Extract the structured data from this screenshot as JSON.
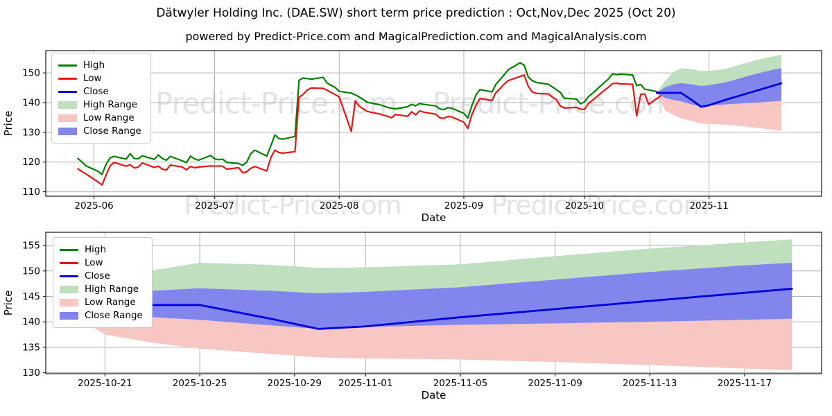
{
  "page": {
    "title": "Dätwyler Holding Inc. (DAE.SW) short term price prediction : Oct,Nov,Dec 2025 (Oct 20)",
    "subtitle": "powered by Predict-Price.com and MagicalPrediction.com and MagicalAnalysis.com",
    "watermark": "Predict-Price.com"
  },
  "colors": {
    "high_line": "#008000",
    "low_line": "#e81414",
    "close_line": "#0000dd",
    "high_range": "#bfdfbf",
    "low_range": "#f8c7c4",
    "close_range": "#8285ec",
    "grid": "#b3b3b3",
    "frame": "#262626",
    "text": "#000000",
    "watermark": "#e3e3e3"
  },
  "legend": {
    "items": [
      "High",
      "Low",
      "Close",
      "High Range",
      "Low Range",
      "Close Range"
    ]
  },
  "series_data": {
    "history": {
      "dates": [
        "2025-05-28",
        "2025-05-29",
        "2025-05-30",
        "2025-06-02",
        "2025-06-03",
        "2025-06-04",
        "2025-06-05",
        "2025-06-06",
        "2025-06-09",
        "2025-06-10",
        "2025-06-11",
        "2025-06-12",
        "2025-06-13",
        "2025-06-16",
        "2025-06-17",
        "2025-06-18",
        "2025-06-19",
        "2025-06-20",
        "2025-06-23",
        "2025-06-24",
        "2025-06-25",
        "2025-06-26",
        "2025-06-27",
        "2025-06-30",
        "2025-07-01",
        "2025-07-02",
        "2025-07-03",
        "2025-07-04",
        "2025-07-07",
        "2025-07-08",
        "2025-07-09",
        "2025-07-10",
        "2025-07-11",
        "2025-07-14",
        "2025-07-15",
        "2025-07-16",
        "2025-07-17",
        "2025-07-18",
        "2025-07-21",
        "2025-07-22",
        "2025-07-23",
        "2025-07-24",
        "2025-07-25",
        "2025-07-28",
        "2025-07-29",
        "2025-07-30",
        "2025-07-31",
        "2025-08-01",
        "2025-08-04",
        "2025-08-05",
        "2025-08-06",
        "2025-08-07",
        "2025-08-08",
        "2025-08-11",
        "2025-08-12",
        "2025-08-13",
        "2025-08-14",
        "2025-08-15",
        "2025-08-18",
        "2025-08-19",
        "2025-08-20",
        "2025-08-21",
        "2025-08-22",
        "2025-08-25",
        "2025-08-26",
        "2025-08-27",
        "2025-08-28",
        "2025-08-29",
        "2025-09-01",
        "2025-09-02",
        "2025-09-03",
        "2025-09-04",
        "2025-09-05",
        "2025-09-08",
        "2025-09-09",
        "2025-09-10",
        "2025-09-11",
        "2025-09-12",
        "2025-09-15",
        "2025-09-16",
        "2025-09-17",
        "2025-09-18",
        "2025-09-19",
        "2025-09-22",
        "2025-09-23",
        "2025-09-24",
        "2025-09-25",
        "2025-09-26",
        "2025-09-29",
        "2025-09-30",
        "2025-10-01",
        "2025-10-02",
        "2025-10-03",
        "2025-10-06",
        "2025-10-07",
        "2025-10-08",
        "2025-10-09",
        "2025-10-10",
        "2025-10-13",
        "2025-10-14",
        "2025-10-15",
        "2025-10-16",
        "2025-10-17",
        "2025-10-20"
      ],
      "high": [
        121.2,
        120.0,
        118.7,
        116.9,
        115.8,
        119.2,
        121.4,
        121.9,
        121.0,
        122.8,
        121.2,
        121.1,
        122.1,
        120.9,
        122.4,
        121.2,
        120.6,
        121.9,
        120.4,
        119.8,
        122.0,
        121.1,
        120.6,
        122.2,
        121.1,
        120.8,
        121.0,
        119.9,
        119.5,
        118.9,
        120.0,
        122.8,
        124.0,
        122.0,
        125.5,
        129.1,
        127.9,
        127.7,
        128.6,
        147.5,
        148.3,
        148.1,
        147.9,
        148.5,
        146.6,
        145.8,
        145.1,
        143.8,
        143.2,
        142.6,
        141.9,
        141.0,
        140.1,
        139.3,
        138.9,
        138.4,
        138.1,
        137.9,
        138.6,
        139.4,
        138.9,
        139.7,
        139.4,
        138.9,
        137.9,
        137.6,
        138.3,
        138.1,
        136.4,
        134.8,
        139.0,
        142.5,
        144.4,
        143.6,
        146.2,
        147.7,
        149.3,
        151.0,
        153.4,
        152.6,
        148.7,
        147.4,
        146.8,
        146.2,
        145.3,
        144.4,
        143.4,
        141.5,
        141.2,
        139.6,
        140.2,
        142.0,
        143.1,
        146.8,
        148.0,
        149.7,
        149.4,
        149.6,
        149.3,
        145.7,
        146.1,
        144.5,
        144.3,
        143.4
      ],
      "low": [
        117.7,
        116.8,
        116.0,
        113.3,
        112.3,
        115.6,
        118.7,
        119.9,
        118.6,
        119.1,
        118.0,
        118.3,
        119.7,
        118.2,
        118.6,
        117.6,
        117.3,
        119.0,
        118.3,
        117.4,
        118.5,
        118.1,
        118.3,
        118.7,
        118.6,
        118.7,
        118.6,
        117.6,
        118.1,
        116.4,
        116.7,
        117.9,
        118.5,
        117.0,
        121.5,
        124.0,
        123.2,
        123.0,
        123.5,
        141.8,
        142.7,
        144.2,
        144.9,
        144.8,
        144.2,
        143.4,
        142.7,
        141.9,
        130.3,
        140.6,
        138.8,
        137.9,
        137.0,
        136.2,
        135.8,
        135.4,
        134.9,
        136.0,
        135.4,
        136.9,
        135.9,
        137.2,
        136.8,
        136.1,
        134.9,
        134.7,
        135.3,
        135.2,
        133.4,
        131.3,
        135.9,
        139.0,
        141.4,
        140.7,
        143.4,
        144.7,
        146.2,
        147.4,
        148.8,
        149.3,
        145.6,
        143.6,
        143.1,
        142.9,
        141.9,
        141.0,
        138.9,
        138.2,
        138.4,
        137.8,
        137.7,
        139.7,
        140.8,
        144.2,
        145.2,
        146.4,
        146.5,
        146.3,
        146.2,
        135.5,
        142.8,
        142.9,
        139.4,
        142.3
      ]
    },
    "prediction": {
      "dates": [
        "2025-10-19",
        "2025-10-21",
        "2025-10-23",
        "2025-10-25",
        "2025-10-28",
        "2025-10-30",
        "2025-11-01",
        "2025-11-05",
        "2025-11-09",
        "2025-11-13",
        "2025-11-17",
        "2025-11-19"
      ],
      "close": [
        143.2,
        143.3,
        143.3,
        143.3,
        140.6,
        138.6,
        139.1,
        140.9,
        142.5,
        144.1,
        145.7,
        146.5
      ],
      "high_upper": [
        143.2,
        147.2,
        150.1,
        151.6,
        151.2,
        150.6,
        150.7,
        151.3,
        152.9,
        154.4,
        155.6,
        156.2
      ],
      "close_upper": [
        143.2,
        145.2,
        146.1,
        146.6,
        146.1,
        145.6,
        145.9,
        146.8,
        148.3,
        149.8,
        151.1,
        151.6
      ],
      "close_lower": [
        143.2,
        141.6,
        140.9,
        140.4,
        139.3,
        138.6,
        139.0,
        139.4,
        139.7,
        140.0,
        140.4,
        140.6
      ],
      "low_lower": [
        143.2,
        137.5,
        135.9,
        134.7,
        133.7,
        133.0,
        132.8,
        132.6,
        132.1,
        131.5,
        130.8,
        130.5
      ]
    }
  },
  "chart_data": [
    {
      "type": "line",
      "name": "price-history-with-prediction",
      "xlabel": "Date",
      "ylabel": "Price",
      "xlim": [
        "2025-05-20",
        "2025-11-29"
      ],
      "ylim": [
        108.5,
        157.5
      ],
      "yticks": [
        110,
        120,
        130,
        140,
        150
      ],
      "xticks": [
        {
          "label": "2025-06",
          "date": "2025-06-01"
        },
        {
          "label": "2025-07",
          "date": "2025-07-01"
        },
        {
          "label": "2025-08",
          "date": "2025-08-01"
        },
        {
          "label": "2025-09",
          "date": "2025-09-01"
        },
        {
          "label": "2025-10",
          "date": "2025-10-01"
        },
        {
          "label": "2025-11",
          "date": "2025-11-01"
        }
      ],
      "grid": true,
      "legend_position": "upper left",
      "show_history": true,
      "show_prediction": true
    },
    {
      "type": "line",
      "name": "prediction-detail",
      "xlabel": "Date",
      "ylabel": "Price",
      "xlim": [
        "2025-10-18T12:00:00",
        "2025-11-20T06:00:00"
      ],
      "ylim": [
        129.8,
        157.6
      ],
      "yticks": [
        130,
        135,
        140,
        145,
        150,
        155
      ],
      "xticks": [
        {
          "label": "2025-10-21",
          "date": "2025-10-21"
        },
        {
          "label": "2025-10-25",
          "date": "2025-10-25"
        },
        {
          "label": "2025-10-29",
          "date": "2025-10-29"
        },
        {
          "label": "2025-11-01",
          "date": "2025-11-01"
        },
        {
          "label": "2025-11-05",
          "date": "2025-11-05"
        },
        {
          "label": "2025-11-09",
          "date": "2025-11-09"
        },
        {
          "label": "2025-11-13",
          "date": "2025-11-13"
        },
        {
          "label": "2025-11-17",
          "date": "2025-11-17"
        }
      ],
      "grid": true,
      "legend_position": "upper left",
      "show_history": false,
      "show_prediction": true
    }
  ]
}
